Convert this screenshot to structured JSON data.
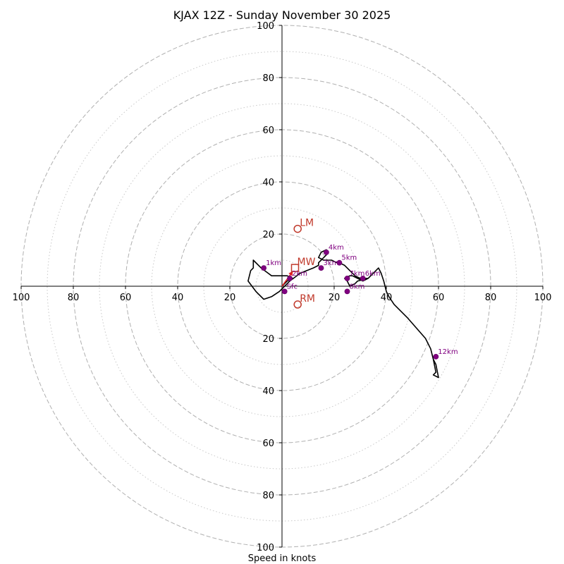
{
  "chart_data": {
    "type": "hodograph",
    "title": "KJAX 12Z - Sunday November 30 2025",
    "xlabel": "Speed in knots",
    "units": "knots",
    "rlim": [
      0,
      100
    ],
    "rings_major": [
      20,
      40,
      60,
      80,
      100
    ],
    "rings_minor": [
      10,
      30,
      50,
      70,
      90
    ],
    "x_tick_labels": [
      "100",
      "80",
      "60",
      "40",
      "20",
      "20",
      "40",
      "60",
      "80",
      "100"
    ],
    "x_tick_values": [
      -100,
      -80,
      -60,
      -40,
      -20,
      20,
      40,
      60,
      80,
      100
    ],
    "y_tick_labels": [
      "100",
      "80",
      "60",
      "40",
      "20",
      "20",
      "40",
      "60",
      "80",
      "100"
    ],
    "y_tick_values": [
      100,
      80,
      60,
      40,
      20,
      -20,
      -40,
      -60,
      -80,
      -100
    ],
    "trace": [
      [
        0,
        0
      ],
      [
        2,
        2
      ],
      [
        4,
        3
      ],
      [
        2,
        4
      ],
      [
        0,
        4
      ],
      [
        -4,
        4
      ],
      [
        -8,
        7
      ],
      [
        -11,
        10
      ],
      [
        -11,
        7
      ],
      [
        -12,
        6
      ],
      [
        -13,
        2
      ],
      [
        -10,
        -2
      ],
      [
        -7,
        -5
      ],
      [
        -4,
        -4
      ],
      [
        -1,
        -2
      ],
      [
        3,
        2
      ],
      [
        7,
        5
      ],
      [
        12,
        7
      ],
      [
        14,
        8
      ],
      [
        14,
        9
      ],
      [
        15,
        10
      ],
      [
        16,
        11
      ],
      [
        17,
        12
      ],
      [
        17,
        13
      ],
      [
        17,
        14
      ],
      [
        15,
        13
      ],
      [
        14,
        11
      ],
      [
        16,
        10
      ],
      [
        19,
        10
      ],
      [
        21,
        9
      ],
      [
        22,
        9
      ],
      [
        24,
        8
      ],
      [
        26,
        6
      ],
      [
        28,
        4
      ],
      [
        30,
        3
      ],
      [
        31,
        3
      ],
      [
        32,
        3
      ],
      [
        33,
        3
      ],
      [
        29,
        2
      ],
      [
        28,
        1
      ],
      [
        26,
        0
      ],
      [
        25,
        2
      ],
      [
        24,
        3
      ],
      [
        26,
        4
      ],
      [
        27,
        4
      ],
      [
        29,
        3
      ],
      [
        31,
        2
      ],
      [
        33,
        3
      ],
      [
        34,
        4
      ],
      [
        36,
        6
      ],
      [
        37,
        7
      ],
      [
        38,
        5
      ],
      [
        39,
        2
      ],
      [
        40,
        -2
      ],
      [
        41,
        -4
      ],
      [
        43,
        -7
      ],
      [
        48,
        -12
      ],
      [
        55,
        -20
      ],
      [
        57,
        -24
      ],
      [
        58,
        -28
      ],
      [
        59,
        -33
      ],
      [
        58,
        -34
      ],
      [
        60,
        -35
      ],
      [
        59,
        -30
      ],
      [
        58,
        -28
      ]
    ],
    "points": [
      {
        "label": "Sfc",
        "u": 1,
        "v": -2
      },
      {
        "label": "1km",
        "u": -7,
        "v": 7
      },
      {
        "label": "2km",
        "u": 3,
        "v": 3
      },
      {
        "label": "3km",
        "u": 15,
        "v": 7
      },
      {
        "label": "4km",
        "u": 17,
        "v": 13
      },
      {
        "label": "5km",
        "u": 22,
        "v": 9
      },
      {
        "label": "6km",
        "u": 31,
        "v": 3
      },
      {
        "label": "7km",
        "u": 25,
        "v": 3
      },
      {
        "label": "8km",
        "u": 25,
        "v": -2
      },
      {
        "label": "12km",
        "u": 59,
        "v": -27
      }
    ],
    "storm_motion": [
      {
        "label": "LM",
        "u": 6,
        "v": 22,
        "marker": "circle"
      },
      {
        "label": "MW",
        "u": 5,
        "v": 7,
        "marker": "square"
      },
      {
        "label": "RM",
        "u": 6,
        "v": -7,
        "marker": "circle"
      }
    ],
    "colors": {
      "trace": "#000000",
      "points": "#800080",
      "motion": "#c0392b",
      "arrow": "#e02020"
    }
  }
}
